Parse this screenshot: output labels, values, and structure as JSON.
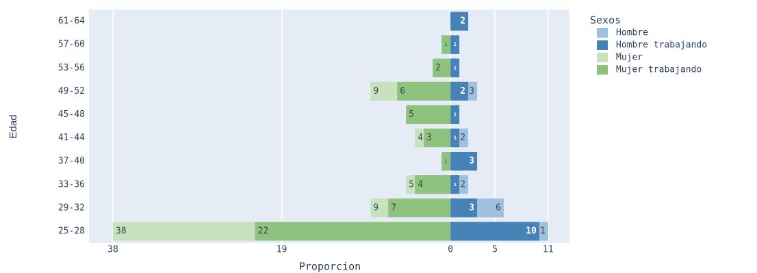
{
  "chart_data": {
    "type": "bar",
    "orientation": "horizontal",
    "barmode": "overlay",
    "x_label": "Proporcion",
    "y_label": "Edad",
    "legend_title": "Sexos",
    "legend_position": "right",
    "categories": [
      "25-28",
      "29-32",
      "33-36",
      "37-40",
      "41-44",
      "45-48",
      "49-52",
      "53-56",
      "57-60",
      "61-64"
    ],
    "series": [
      {
        "name": "Hombre",
        "color": "#9fc1de",
        "values": [
          11,
          6,
          2,
          3,
          2,
          1,
          3,
          1,
          1,
          2
        ]
      },
      {
        "name": "Hombre trabajando",
        "color": "#4682b6",
        "values": [
          10,
          3,
          1,
          3,
          1,
          1,
          2,
          1,
          1,
          2
        ]
      },
      {
        "name": "Mujer",
        "color": "#c6e2bf",
        "values": [
          -38,
          -9,
          -5,
          -1,
          -4,
          -5,
          -9,
          -2,
          -1,
          0
        ],
        "value_labels": [
          "38",
          "9",
          "5",
          "1",
          "4",
          "5",
          "9",
          "2",
          "1",
          "0"
        ]
      },
      {
        "name": "Mujer trabajando",
        "color": "#8dc27f",
        "values": [
          -22,
          -7,
          -4,
          -1,
          -3,
          -5,
          -6,
          -2,
          -1,
          0
        ],
        "value_labels": [
          "22",
          "7",
          "4",
          "1",
          "3",
          "5",
          "6",
          "2",
          "1",
          "0"
        ]
      }
    ],
    "xlim": [
      -40.7,
      13.4
    ],
    "xticks": [
      {
        "value": -38,
        "label": "38"
      },
      {
        "value": -19,
        "label": "19"
      },
      0,
      5,
      11
    ],
    "grid": true
  }
}
